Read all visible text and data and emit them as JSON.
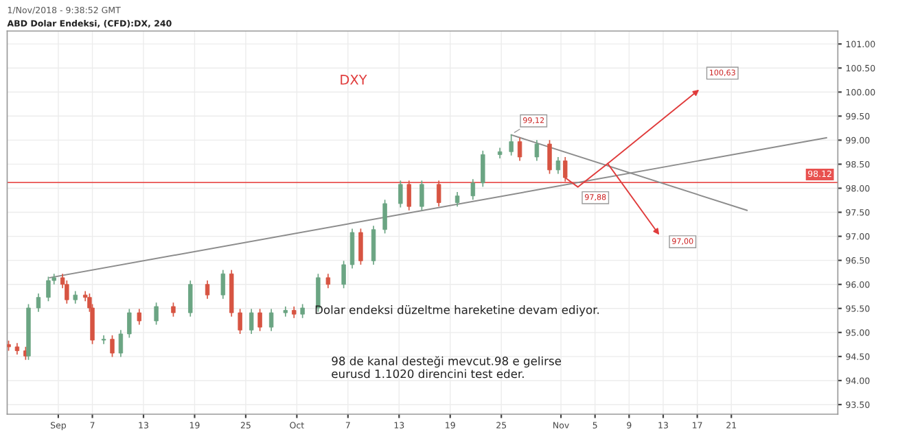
{
  "chart_data": {
    "type": "candlestick",
    "title": "ABD Dolar Endeksi, (CFD):DX, 240",
    "subtitle": "1/Nov/2018 - 9:38:52 GMT",
    "x": [
      "2018-08-28T04:00",
      "2018-08-29T04:00",
      "2018-08-30T04:00",
      "2018-08-30T12:00",
      "2018-08-31T16:00",
      "2018-09-01T20:00",
      "2018-09-02T12:00",
      "2018-09-03T12:00",
      "2018-09-04T00:00",
      "2018-09-05T00:00",
      "2018-09-06T04:00",
      "2018-09-06T16:00",
      "2018-09-07T00:00",
      "2018-09-08T08:00",
      "2018-09-09T08:00",
      "2018-09-10T08:00",
      "2018-09-11T08:00",
      "2018-09-12T12:00",
      "2018-09-14T12:00",
      "2018-09-16T12:00",
      "2018-09-18T12:00",
      "2018-09-20T12:00",
      "2018-09-22T08:00",
      "2018-09-23T08:00",
      "2018-09-24T08:00",
      "2018-09-25T16:00",
      "2018-09-26T16:00",
      "2018-09-28T00:00",
      "2018-09-29T16:00",
      "2018-09-30T16:00",
      "2018-10-01T16:00",
      "2018-10-03T12:00",
      "2018-10-04T16:00",
      "2018-10-06T12:00",
      "2018-10-07T12:00",
      "2018-10-08T12:00",
      "2018-10-10T00:00",
      "2018-10-11T08:00",
      "2018-10-13T04:00",
      "2018-10-14T04:00",
      "2018-10-15T16:00",
      "2018-10-17T16:00",
      "2018-10-19T20:00",
      "2018-10-21T16:00",
      "2018-10-22T20:00",
      "2018-10-24T20:00",
      "2018-10-26T04:00",
      "2018-10-27T04:00",
      "2018-10-29T04:00",
      "2018-10-30T16:00",
      "2018-10-31T16:00",
      "2018-11-01T12:00"
    ],
    "ohlc": [
      [
        94.75,
        94.83,
        94.62,
        94.7
      ],
      [
        94.7,
        94.78,
        94.54,
        94.62
      ],
      [
        94.62,
        94.7,
        94.43,
        94.51
      ],
      [
        94.51,
        95.59,
        94.43,
        95.51
      ],
      [
        95.51,
        95.81,
        95.43,
        95.73
      ],
      [
        95.73,
        96.16,
        95.65,
        96.08
      ],
      [
        96.08,
        96.22,
        96.0,
        96.14
      ],
      [
        96.14,
        96.22,
        95.92,
        96.0
      ],
      [
        96.0,
        96.08,
        95.6,
        95.68
      ],
      [
        95.68,
        95.86,
        95.6,
        95.78
      ],
      [
        95.78,
        95.86,
        95.65,
        95.73
      ],
      [
        95.73,
        95.81,
        95.43,
        95.51
      ],
      [
        95.51,
        95.59,
        94.76,
        94.84
      ],
      [
        94.84,
        94.94,
        94.76,
        94.86
      ],
      [
        94.86,
        94.94,
        94.49,
        94.57
      ],
      [
        94.57,
        95.05,
        94.49,
        94.97
      ],
      [
        94.97,
        95.49,
        94.89,
        95.41
      ],
      [
        95.41,
        95.49,
        95.16,
        95.24
      ],
      [
        95.24,
        95.62,
        95.16,
        95.54
      ],
      [
        95.54,
        95.62,
        95.33,
        95.41
      ],
      [
        95.41,
        96.08,
        95.33,
        96.0
      ],
      [
        96.0,
        96.08,
        95.7,
        95.78
      ],
      [
        95.78,
        96.3,
        95.7,
        96.22
      ],
      [
        96.22,
        96.3,
        95.33,
        95.41
      ],
      [
        95.41,
        95.49,
        94.97,
        95.05
      ],
      [
        95.05,
        95.49,
        94.97,
        95.41
      ],
      [
        95.41,
        95.49,
        95.03,
        95.11
      ],
      [
        95.11,
        95.49,
        95.03,
        95.41
      ],
      [
        95.41,
        95.54,
        95.33,
        95.46
      ],
      [
        95.46,
        95.54,
        95.3,
        95.38
      ],
      [
        95.38,
        95.59,
        95.3,
        95.51
      ],
      [
        95.51,
        96.22,
        95.43,
        96.14
      ],
      [
        96.14,
        96.22,
        95.92,
        96.0
      ],
      [
        96.0,
        96.49,
        95.92,
        96.41
      ],
      [
        96.41,
        97.16,
        96.33,
        97.08
      ],
      [
        97.08,
        97.16,
        96.41,
        96.49
      ],
      [
        96.49,
        97.22,
        96.41,
        97.14
      ],
      [
        97.14,
        97.76,
        97.06,
        97.68
      ],
      [
        97.68,
        98.16,
        97.6,
        98.08
      ],
      [
        98.08,
        98.16,
        97.54,
        97.62
      ],
      [
        97.62,
        98.16,
        97.54,
        98.08
      ],
      [
        98.08,
        98.16,
        97.62,
        97.7
      ],
      [
        97.7,
        97.92,
        97.62,
        97.84
      ],
      [
        97.84,
        98.19,
        97.76,
        98.11
      ],
      [
        98.11,
        98.78,
        98.03,
        98.7
      ],
      [
        98.7,
        98.84,
        98.62,
        98.76
      ],
      [
        98.76,
        99.12,
        98.68,
        98.97
      ],
      [
        98.97,
        99.05,
        98.57,
        98.65
      ],
      [
        98.65,
        99.0,
        98.57,
        98.92
      ],
      [
        98.92,
        99.0,
        98.3,
        98.38
      ],
      [
        98.38,
        98.65,
        98.3,
        98.57
      ],
      [
        98.57,
        98.65,
        98.14,
        98.22
      ]
    ],
    "colors": [
      "#d75442",
      "#d75442",
      "#d75442",
      "#6ba583",
      "#6ba583",
      "#6ba583",
      "#6ba583",
      "#d75442",
      "#d75442",
      "#6ba583",
      "#d75442",
      "#d75442",
      "#d75442",
      "#6ba583",
      "#d75442",
      "#6ba583",
      "#6ba583",
      "#d75442",
      "#6ba583",
      "#d75442",
      "#6ba583",
      "#d75442",
      "#6ba583",
      "#d75442",
      "#d75442",
      "#6ba583",
      "#d75442",
      "#6ba583",
      "#6ba583",
      "#d75442",
      "#6ba583",
      "#6ba583",
      "#d75442",
      "#6ba583",
      "#6ba583",
      "#d75442",
      "#6ba583",
      "#6ba583",
      "#6ba583",
      "#d75442",
      "#6ba583",
      "#d75442",
      "#6ba583",
      "#6ba583",
      "#6ba583",
      "#6ba583",
      "#6ba583",
      "#d75442",
      "#6ba583",
      "#d75442",
      "#6ba583",
      "#d75442"
    ],
    "series": [
      {
        "type": "line",
        "x": [
          "2018-09-02T00:00",
          "2018-12-02T04:00"
        ],
        "values": [
          96.14,
          99.05
        ],
        "color": "#8c8c8c"
      },
      {
        "type": "line",
        "x": [
          "2018-10-26T04:00",
          "2018-11-22T20:00"
        ],
        "values": [
          99.11,
          97.54
        ],
        "color": "#8c8c8c"
      }
    ],
    "ref_lines": [
      {
        "axis": "y",
        "value": 98.12,
        "label": "98.12",
        "color": "#e8514f"
      }
    ],
    "annotations": [
      "DXY",
      "Dolar endeksi düzeltme hareketine devam ediyor.",
      "98 de kanal desteği mevcut.98 e gelirse\neurusd 1.1020 direncini test eder.",
      {
        "text": "99,12",
        "x": "2018-10-26T04:00",
        "y": 99.12
      },
      "97,88",
      "100,63",
      "97,00"
    ],
    "xlim": [
      "2018-08-28T00:00",
      "2018-12-03T12:00"
    ],
    "xticks": [
      {
        "value": "2018-09-03",
        "label": "Sep"
      },
      {
        "value": "2018-09-07",
        "label": "7"
      },
      {
        "value": "2018-09-13",
        "label": "13"
      },
      {
        "value": "2018-09-19",
        "label": "19"
      },
      {
        "value": "2018-09-25",
        "label": "25"
      },
      {
        "value": "2018-10-01",
        "label": "Oct"
      },
      {
        "value": "2018-10-07",
        "label": "7"
      },
      {
        "value": "2018-10-13",
        "label": "13"
      },
      {
        "value": "2018-10-19",
        "label": "19"
      },
      {
        "value": "2018-10-25",
        "label": "25"
      },
      {
        "value": "2018-11-01",
        "label": "Nov"
      },
      {
        "value": "2018-11-05",
        "label": "5"
      },
      {
        "value": "2018-11-09",
        "label": "9"
      },
      {
        "value": "2018-11-13",
        "label": "13"
      },
      {
        "value": "2018-11-17",
        "label": "17"
      },
      {
        "value": "2018-11-21",
        "label": "21"
      }
    ],
    "ylim": [
      93.3,
      101.27
    ],
    "yticks": [
      {
        "value": 93.5,
        "label": "93.50"
      },
      {
        "value": 94,
        "label": "94.00"
      },
      {
        "value": 94.5,
        "label": "94.50"
      },
      {
        "value": 95,
        "label": "95.00"
      },
      {
        "value": 95.5,
        "label": "95.50"
      },
      {
        "value": 96,
        "label": "96.00"
      },
      {
        "value": 96.5,
        "label": "96.50"
      },
      {
        "value": 97,
        "label": "97.00"
      },
      {
        "value": 97.5,
        "label": "97.50"
      },
      {
        "value": 98,
        "label": "98.00"
      },
      {
        "value": 98.5,
        "label": "98.50"
      },
      {
        "value": 99,
        "label": "99.00"
      },
      {
        "value": 99.5,
        "label": "99.50"
      },
      {
        "value": 100,
        "label": "100.00"
      },
      {
        "value": 100.5,
        "label": "100.50"
      },
      {
        "value": 101,
        "label": "101.00"
      }
    ],
    "grid": true
  }
}
